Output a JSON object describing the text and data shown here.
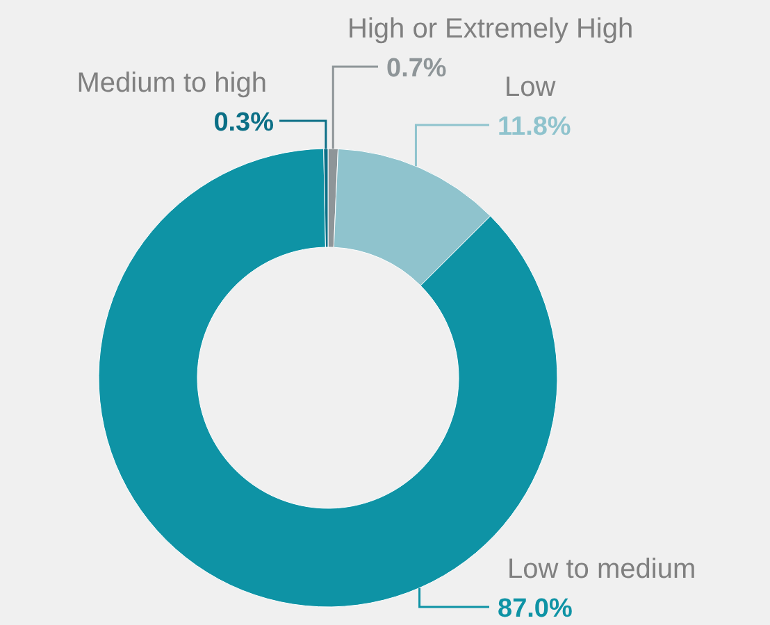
{
  "chart_data": {
    "type": "donut",
    "categories": [
      "High or Extremely High",
      "Low",
      "Low to medium",
      "Medium to high"
    ],
    "values": [
      0.7,
      11.8,
      87.0,
      0.3
    ],
    "colors": [
      "#8e9598",
      "#8fc3cd",
      "#0e93a5",
      "#0b6f86"
    ],
    "value_labels": [
      "0.7%",
      "11.8%",
      "87.0%",
      "0.3%"
    ]
  }
}
